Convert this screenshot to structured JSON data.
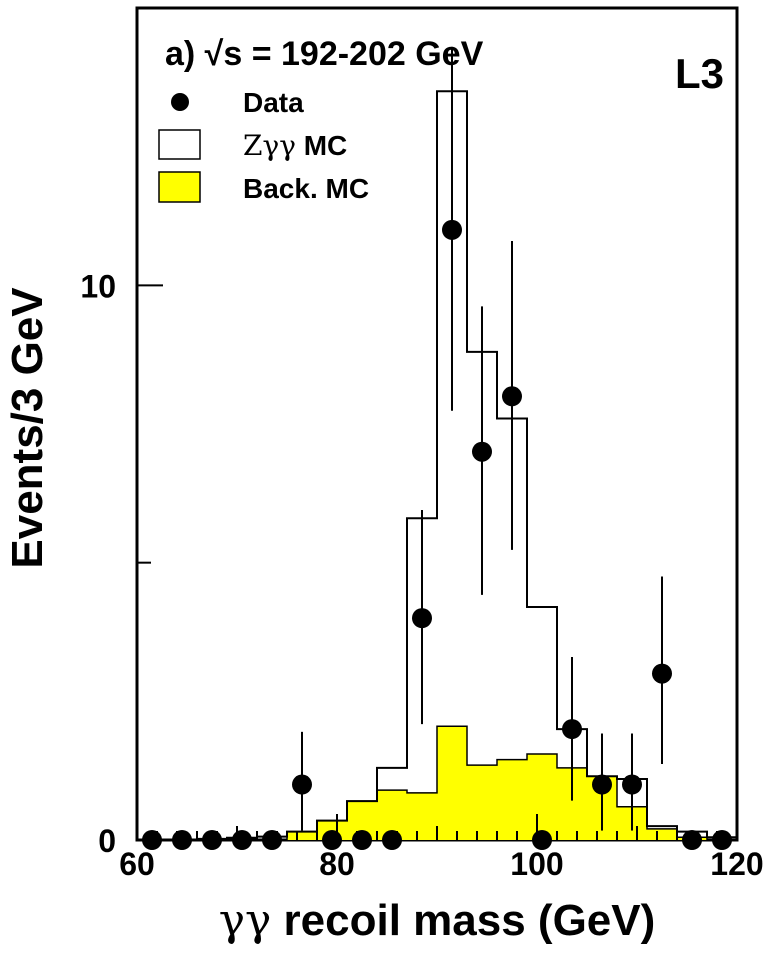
{
  "chart_data": {
    "type": "bar",
    "annotation": "a) √s = 192-202 GeV",
    "experiment_label": "L3",
    "xlabel_symbol": "γγ",
    "xlabel_text": " recoil mass (GeV)",
    "ylabel": "Events/3 GeV",
    "xlim": [
      60,
      120
    ],
    "ylim": [
      0,
      15
    ],
    "x_ticks": [
      "60",
      "80",
      "100",
      "120"
    ],
    "y_ticks": [
      "0",
      "10"
    ],
    "legend": {
      "position": "top-left",
      "entries": [
        {
          "label": "Data",
          "kind": "marker"
        },
        {
          "label_symbol": "Zγγ",
          "label_text": " MC",
          "kind": "open-histogram"
        },
        {
          "label": "Back. MC",
          "kind": "filled-histogram",
          "color": "#ffff00"
        }
      ]
    },
    "bin_edges": [
      60,
      63,
      66,
      69,
      72,
      75,
      78,
      81,
      84,
      87,
      90,
      93,
      96,
      99,
      102,
      105,
      108,
      111,
      114,
      117,
      120
    ],
    "series": [
      {
        "name": "Zγγ MC",
        "style": "step-outline",
        "values": [
          0,
          0,
          0.02,
          0.04,
          0.06,
          0.15,
          0.35,
          0.7,
          1.3,
          5.8,
          13.5,
          8.8,
          7.6,
          4.2,
          2.0,
          1.15,
          1.1,
          0.25,
          0.15,
          0.05
        ]
      },
      {
        "name": "Back. MC",
        "style": "step-filled",
        "color": "#ffff00",
        "values": [
          0,
          0,
          0,
          0,
          0,
          0.15,
          0.35,
          0.7,
          0.9,
          0.85,
          2.05,
          1.35,
          1.45,
          1.55,
          1.3,
          1.15,
          0.6,
          0.2,
          0.05,
          0
        ]
      },
      {
        "name": "Data",
        "style": "points",
        "x": [
          61.5,
          64.5,
          67.5,
          70.5,
          73.5,
          76.5,
          79.5,
          82.5,
          85.5,
          88.5,
          91.5,
          94.5,
          97.5,
          100.5,
          103.5,
          106.5,
          109.5,
          112.5,
          115.5,
          118.5
        ],
        "y": [
          0,
          0,
          0,
          0,
          0,
          1,
          0,
          0,
          0,
          4,
          11,
          7,
          8,
          0,
          2,
          1,
          1,
          3,
          0,
          0
        ],
        "err_low": [
          0,
          0,
          0,
          0,
          0,
          0.83,
          0,
          0,
          0,
          1.91,
          3.26,
          2.58,
          2.77,
          0,
          1.29,
          0.83,
          0.83,
          1.63,
          0,
          0
        ],
        "err_high": [
          0,
          0,
          0,
          0,
          0,
          0.95,
          0,
          0,
          0,
          1.95,
          3.3,
          2.62,
          2.8,
          0,
          1.3,
          0.92,
          0.92,
          1.75,
          0,
          0
        ]
      }
    ]
  }
}
